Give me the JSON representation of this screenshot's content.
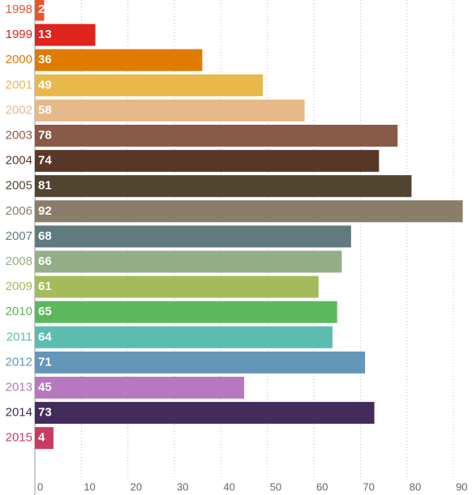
{
  "chart_data": {
    "type": "barh",
    "categories": [
      "1998",
      "1999",
      "2000",
      "2001",
      "2002",
      "2003",
      "2004",
      "2005",
      "2006",
      "2007",
      "2008",
      "2009",
      "2010",
      "2011",
      "2012",
      "2013",
      "2014",
      "2015"
    ],
    "values": [
      2,
      13,
      36,
      49,
      58,
      78,
      74,
      81,
      92,
      68,
      66,
      61,
      65,
      64,
      71,
      45,
      73,
      4
    ],
    "colors": [
      "#e8532c",
      "#e0231c",
      "#e07b00",
      "#e8b84a",
      "#e6b98a",
      "#8a5a48",
      "#5a3828",
      "#524530",
      "#8a7d6a",
      "#607a80",
      "#94ae88",
      "#a4bb5c",
      "#5cb85c",
      "#5cbcb0",
      "#6496b8",
      "#b878c0",
      "#442c5a",
      "#c83c64"
    ],
    "xlim": [
      0,
      94
    ],
    "xticks": [
      0,
      10,
      20,
      30,
      40,
      50,
      60,
      70,
      80,
      90
    ],
    "grid": true
  }
}
